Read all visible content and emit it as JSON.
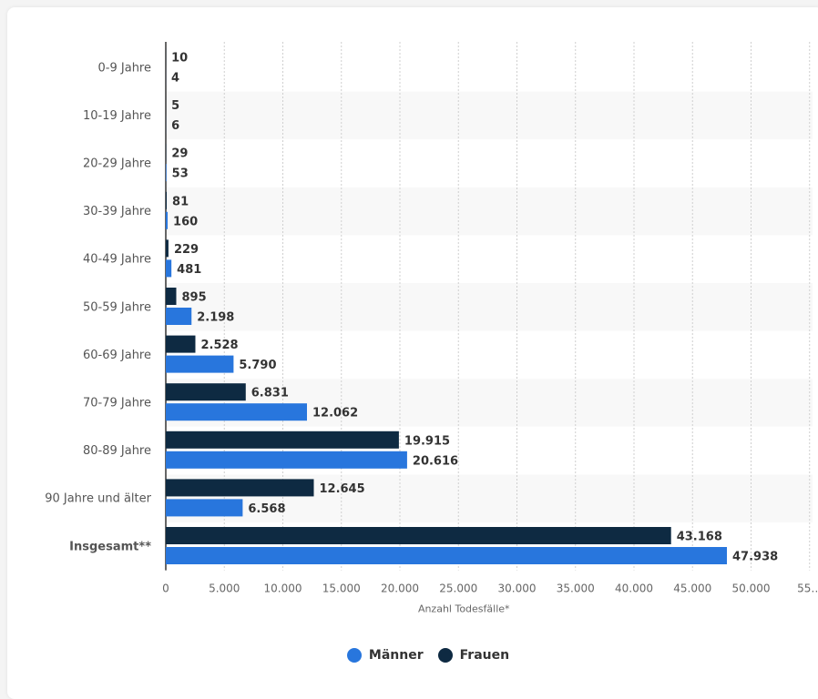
{
  "chart_data": {
    "type": "bar",
    "orientation": "horizontal",
    "title": "",
    "xlabel": "Anzahl Todesfälle*",
    "ylabel": "",
    "xlim": [
      0,
      55000
    ],
    "ticks": [
      "0",
      "5.000",
      "10.000",
      "15.000",
      "20.000",
      "25.000",
      "30.000",
      "35.000",
      "40.000",
      "45.000",
      "50.000",
      "55…"
    ],
    "categories": [
      "0-9 Jahre",
      "10-19 Jahre",
      "20-29 Jahre",
      "30-39 Jahre",
      "40-49 Jahre",
      "50-59 Jahre",
      "60-69 Jahre",
      "70-79 Jahre",
      "80-89 Jahre",
      "90 Jahre und älter",
      "Insgesamt**"
    ],
    "series": [
      {
        "name": "Frauen",
        "color": "#0e2a42",
        "values": [
          10,
          5,
          29,
          81,
          229,
          895,
          2528,
          6831,
          19915,
          12645,
          43168
        ],
        "labels": [
          "10",
          "5",
          "29",
          "81",
          "229",
          "895",
          "2.528",
          "6.831",
          "19.915",
          "12.645",
          "43.168"
        ]
      },
      {
        "name": "Männer",
        "color": "#2876dd",
        "values": [
          4,
          6,
          53,
          160,
          481,
          2198,
          5790,
          12062,
          20616,
          6568,
          47938
        ],
        "labels": [
          "4",
          "6",
          "53",
          "160",
          "481",
          "2.198",
          "5.790",
          "12.062",
          "20.616",
          "6.568",
          "47.938"
        ]
      }
    ],
    "legend": [
      "Männer",
      "Frauen"
    ],
    "legend_position": "bottom"
  }
}
